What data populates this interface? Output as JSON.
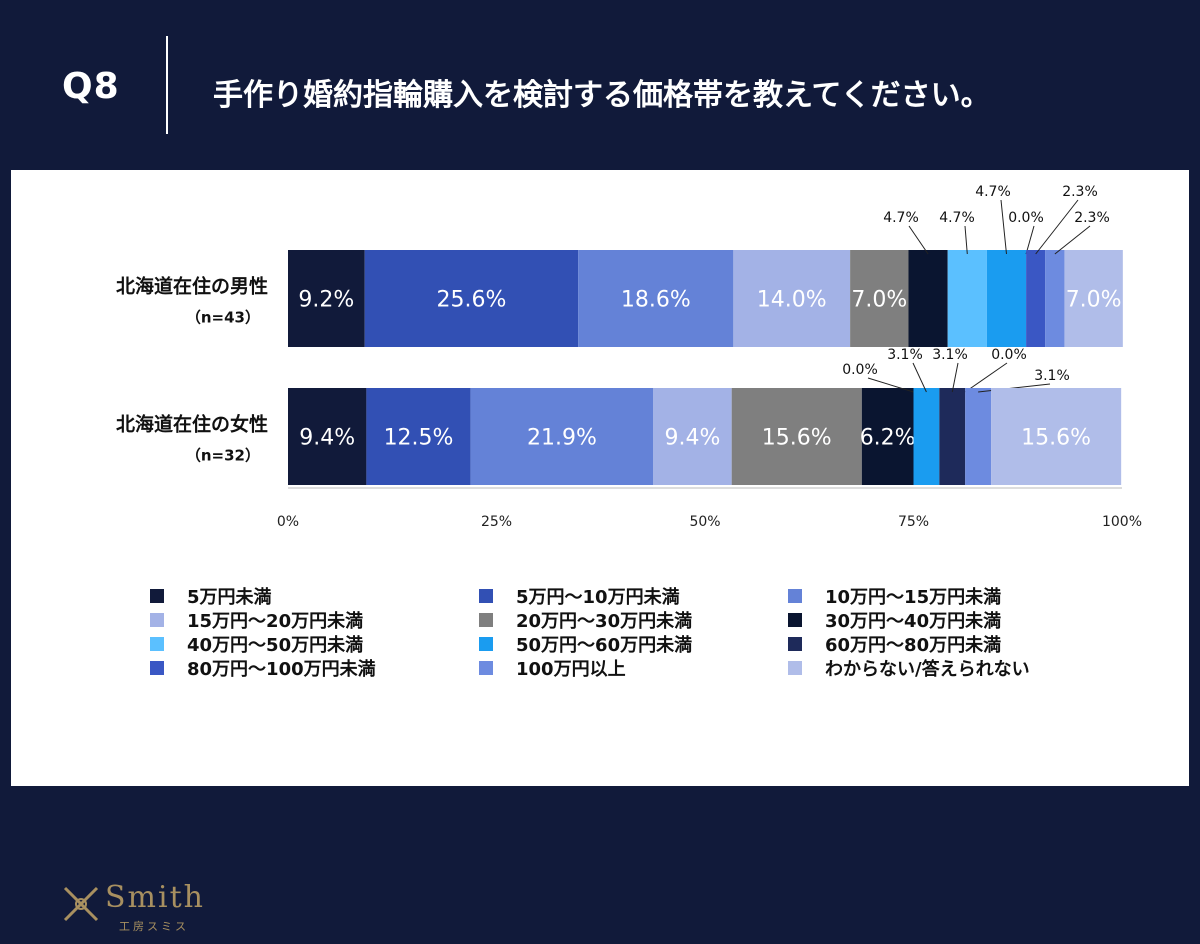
{
  "header": {
    "question_number": "Q8",
    "question_text": "手作り婚約指輪購入を検討する価格帯を教えてください。"
  },
  "logo": {
    "name": "Smith",
    "sub": "工房スミス"
  },
  "colors": {
    "background": "#111a3a",
    "panel": "#ffffff"
  },
  "chart_data": {
    "type": "bar",
    "orientation": "horizontal-stacked-100",
    "xlim": [
      0,
      100
    ],
    "ticks": [
      "0%",
      "25%",
      "50%",
      "75%",
      "100%"
    ],
    "categories": [
      {
        "label": "北海道在住の男性",
        "n": "（n=43）"
      },
      {
        "label": "北海道在住の女性",
        "n": "（n=32）"
      }
    ],
    "series": [
      {
        "name": "5万円未満",
        "color": "#111a3a",
        "values": [
          9.2,
          9.4
        ],
        "labels": [
          "9.2%",
          "9.4%"
        ]
      },
      {
        "name": "5万円〜10万円未満",
        "color": "#3250b4",
        "values": [
          25.6,
          12.5
        ],
        "labels": [
          "25.6%",
          "12.5%"
        ]
      },
      {
        "name": "10万円〜15万円未満",
        "color": "#6482d7",
        "values": [
          18.6,
          21.9
        ],
        "labels": [
          "18.6%",
          "21.9%"
        ]
      },
      {
        "name": "15万円〜20万円未満",
        "color": "#a3b2e6",
        "values": [
          14.0,
          9.4
        ],
        "labels": [
          "14.0%",
          "9.4%"
        ]
      },
      {
        "name": "20万円〜30万円未満",
        "color": "#7f7f7f",
        "values": [
          7.0,
          15.6
        ],
        "labels": [
          "7.0%",
          "15.6%"
        ]
      },
      {
        "name": "30万円〜40万円未満",
        "color": "#0a1530",
        "values": [
          4.7,
          6.2
        ],
        "labels": [
          "4.7%",
          "6.2%"
        ]
      },
      {
        "name": "40万円〜50万円未満",
        "color": "#5bc0ff",
        "values": [
          4.7,
          0.0
        ],
        "labels": [
          "4.7%",
          "0.0%"
        ]
      },
      {
        "name": "50万円〜60万円未満",
        "color": "#1a9cf0",
        "values": [
          4.7,
          3.1
        ],
        "labels": [
          "4.7%",
          "3.1%"
        ]
      },
      {
        "name": "60万円〜80万円未満",
        "color": "#1e2a5a",
        "values": [
          0.0,
          3.1
        ],
        "labels": [
          "0.0%",
          "3.1%"
        ]
      },
      {
        "name": "80万円〜100万円未満",
        "color": "#3a57c4",
        "values": [
          2.3,
          0.0
        ],
        "labels": [
          "2.3%",
          "0.0%"
        ]
      },
      {
        "name": "100万円以上",
        "color": "#6d8be0",
        "values": [
          2.3,
          3.1
        ],
        "labels": [
          "2.3%",
          "3.1%"
        ]
      },
      {
        "name": "わからない/答えられない",
        "color": "#b0bde9",
        "values": [
          7.0,
          15.6
        ],
        "labels": [
          "7.0%",
          "15.6%"
        ]
      }
    ]
  }
}
